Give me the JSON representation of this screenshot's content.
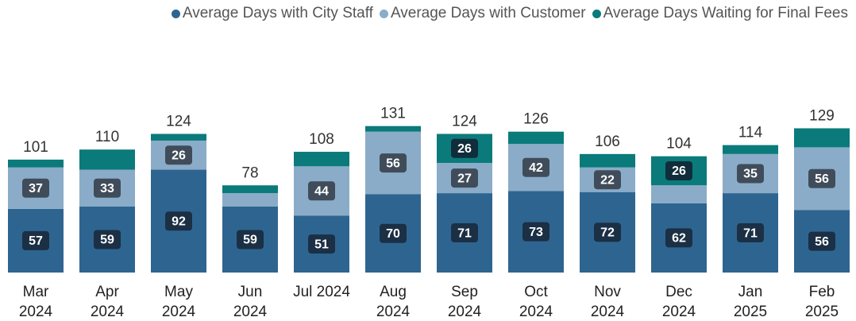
{
  "chart_data": {
    "type": "stacked_bar",
    "categories": [
      "Mar 2024",
      "Apr 2024",
      "May 2024",
      "Jun 2024",
      "Jul 2024",
      "Aug 2024",
      "Sep 2024",
      "Oct 2024",
      "Nov 2024",
      "Dec 2024",
      "Jan 2025",
      "Feb 2025"
    ],
    "series": [
      {
        "name": "Average Days with City Staff",
        "color": "#2e6590",
        "values": [
          57,
          59,
          92,
          59,
          51,
          70,
          71,
          73,
          72,
          62,
          71,
          56
        ]
      },
      {
        "name": "Average Days with Customer",
        "color": "#8aacc8",
        "values": [
          37,
          33,
          26,
          12,
          44,
          56,
          27,
          42,
          22,
          16,
          35,
          56
        ]
      },
      {
        "name": "Average Days Waiting for Final Fees",
        "color": "#0b7a7a",
        "values": [
          7,
          18,
          6,
          7,
          13,
          5,
          26,
          11,
          12,
          26,
          8,
          17
        ]
      }
    ],
    "totals": [
      101,
      110,
      124,
      78,
      108,
      131,
      124,
      126,
      106,
      104,
      114,
      129
    ],
    "ylim": [
      0,
      140
    ]
  }
}
